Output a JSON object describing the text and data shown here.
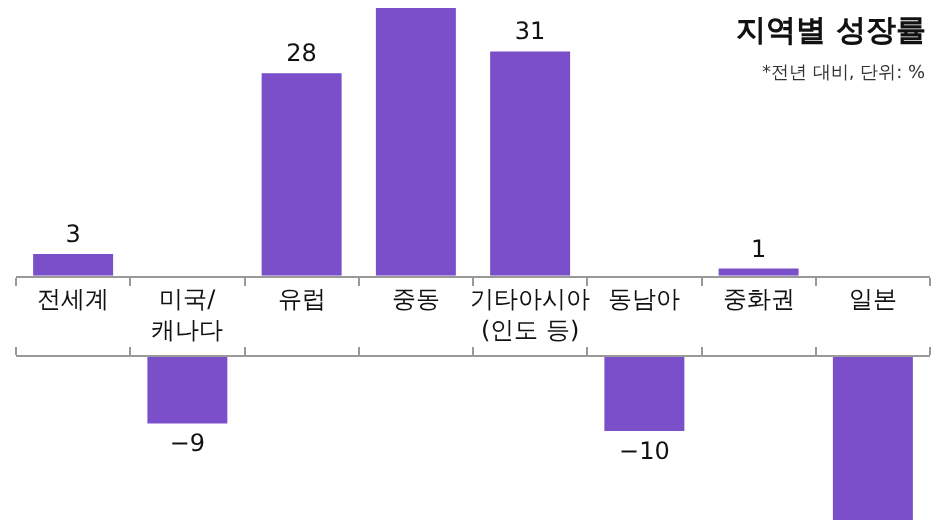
{
  "chart_data": [
    {
      "type": "bar",
      "title": "지역별 성장률",
      "subtitle": "*전년 대비, 단위: %",
      "categories": [
        "전세계",
        "미국/\n캐나다",
        "유럽",
        "중동",
        "기타아시아\n(인도 등)",
        "동남아",
        "중화권",
        "일본"
      ],
      "values": [
        3,
        null,
        28,
        37,
        31,
        null,
        1,
        null
      ],
      "value_labels": [
        "3",
        null,
        "28",
        null,
        "31",
        null,
        "1",
        null
      ],
      "color": "#7b4fc9",
      "ylim": [
        0,
        37
      ]
    },
    {
      "type": "bar",
      "categories": [
        null,
        null,
        null,
        null,
        null,
        null,
        null,
        null
      ],
      "values": [
        null,
        -9,
        null,
        null,
        null,
        -10,
        null,
        -22
      ],
      "value_labels": [
        null,
        "−9",
        null,
        null,
        null,
        "−10",
        null,
        null
      ],
      "color": "#7b4fc9",
      "ylim": [
        -22,
        0
      ]
    }
  ]
}
